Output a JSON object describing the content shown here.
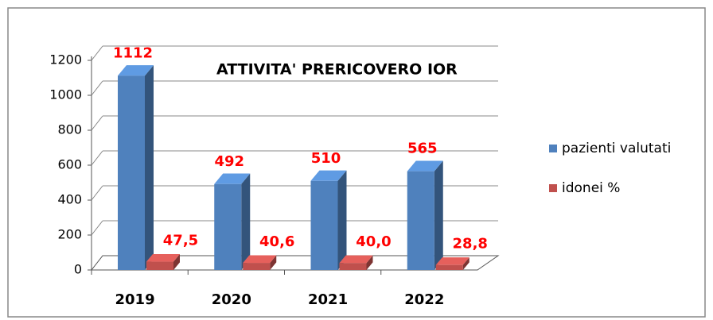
{
  "chart_data": {
    "type": "bar3d",
    "title": "ATTIVITA' PRERICOVERO IOR",
    "categories": [
      "2019",
      "2020",
      "2021",
      "2022"
    ],
    "series": [
      {
        "name": "pazienti valutati",
        "color": "#4f81bd",
        "values": [
          1112,
          492,
          510,
          565
        ]
      },
      {
        "name": "idonei %",
        "color": "#c0504d",
        "values": [
          47.5,
          40.6,
          40.0,
          28.8
        ],
        "value_labels": [
          "47,5",
          "40,6",
          "40,0",
          "28,8"
        ]
      }
    ],
    "ylim": [
      0,
      1200
    ],
    "yticks": [
      0,
      200,
      400,
      600,
      800,
      1000,
      1200
    ],
    "grid": true,
    "legend": "right"
  }
}
